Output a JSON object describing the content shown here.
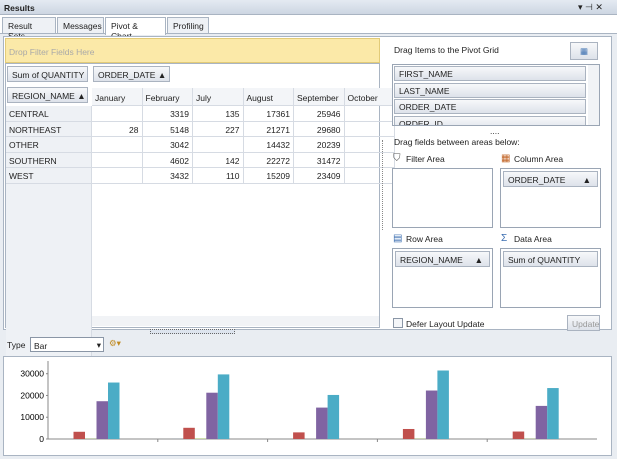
{
  "window": {
    "title": "Results"
  },
  "tabs": [
    "Result Sets",
    "Messages",
    "Pivot & Chart",
    "Profiling"
  ],
  "active_tab": 2,
  "pivot": {
    "filter_hint": "Drop Filter Fields Here",
    "data_field": "Sum of QUANTITY",
    "column_field": "ORDER_DATE",
    "row_field": "REGION_NAME",
    "columns": [
      "January",
      "February",
      "July",
      "August",
      "September",
      "October"
    ],
    "rows": [
      {
        "label": "CENTRAL",
        "values": [
          null,
          3319,
          135,
          17361,
          25946,
          null
        ]
      },
      {
        "label": "NORTHEAST",
        "values": [
          28,
          5148,
          227,
          21271,
          29680,
          null
        ]
      },
      {
        "label": "OTHER",
        "values": [
          null,
          3042,
          null,
          14432,
          20239,
          null
        ]
      },
      {
        "label": "SOUTHERN",
        "values": [
          null,
          4602,
          142,
          22272,
          31472,
          null
        ]
      },
      {
        "label": "WEST",
        "values": [
          null,
          3432,
          110,
          15209,
          23409,
          null
        ]
      }
    ]
  },
  "field_list": {
    "title": "Drag Items to the Pivot Grid",
    "fields": [
      "FIRST_NAME",
      "LAST_NAME",
      "ORDER_DATE",
      "ORDER_ID"
    ],
    "areas_hint": "Drag fields between areas below:",
    "areas": [
      {
        "name": "Filter Area",
        "fields": []
      },
      {
        "name": "Column Area",
        "fields": [
          "ORDER_DATE"
        ]
      },
      {
        "name": "Row Area",
        "fields": [
          "REGION_NAME"
        ]
      },
      {
        "name": "Data Area",
        "fields": [
          "Sum of QUANTITY"
        ]
      }
    ],
    "defer_label": "Defer Layout Update",
    "update_button": "Update"
  },
  "chart_options": {
    "type_label": "Type",
    "type_value": "Bar"
  },
  "chart_data": {
    "type": "bar",
    "ylim": [
      0,
      34000
    ],
    "yticks": [
      0,
      10000,
      20000,
      30000
    ],
    "grid": false,
    "series_colors": [
      "#4f81bd",
      "#c0504d",
      "#9bbb59",
      "#8064a2",
      "#4bacc6",
      "#f79646"
    ]
  }
}
